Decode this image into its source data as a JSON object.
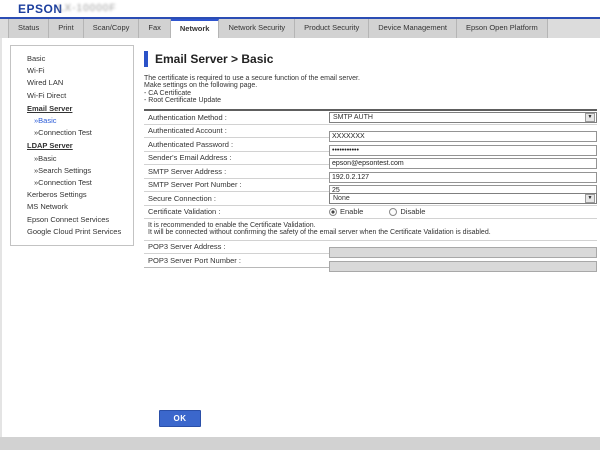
{
  "header": {
    "brand": "EPSON",
    "model": "LX-10000F"
  },
  "tabs": [
    {
      "label": "Status"
    },
    {
      "label": "Print"
    },
    {
      "label": "Scan/Copy"
    },
    {
      "label": "Fax"
    },
    {
      "label": "Network",
      "active": true
    },
    {
      "label": "Network Security"
    },
    {
      "label": "Product Security"
    },
    {
      "label": "Device Management"
    },
    {
      "label": "Epson Open Platform"
    }
  ],
  "sidebar": {
    "items": [
      {
        "label": "Basic"
      },
      {
        "label": "Wi-Fi"
      },
      {
        "label": "Wired LAN"
      },
      {
        "label": "Wi-Fi Direct"
      },
      {
        "label": "Email Server",
        "type": "section"
      },
      {
        "label": "»Basic",
        "type": "sub",
        "active": true
      },
      {
        "label": "»Connection Test",
        "type": "sub"
      },
      {
        "label": "LDAP Server",
        "type": "section"
      },
      {
        "label": "»Basic",
        "type": "sub"
      },
      {
        "label": "»Search Settings",
        "type": "sub"
      },
      {
        "label": "»Connection Test",
        "type": "sub"
      },
      {
        "label": "Kerberos Settings"
      },
      {
        "label": "MS Network"
      },
      {
        "label": "Epson Connect Services"
      },
      {
        "label": "Google Cloud Print Services"
      }
    ]
  },
  "main": {
    "title": "Email Server > Basic",
    "intro_lines": [
      "The certificate is required to use a secure function of the email server.",
      "Make settings on the following page.",
      "- CA Certificate",
      "- Root Certificate Update"
    ],
    "form": {
      "rows": [
        {
          "label": "Authentication Method :",
          "value": "SMTP AUTH"
        },
        {
          "label": "Authenticated Account :",
          "value": "XXXXXXX"
        },
        {
          "label": "Authenticated Password :",
          "value": "•••••••••••"
        },
        {
          "label": "Sender's Email Address :",
          "value": "epson@epsontest.com"
        },
        {
          "label": "SMTP Server Address :",
          "value": "192.0.2.127"
        },
        {
          "label": "SMTP Server Port Number :",
          "value": "25"
        },
        {
          "label": "Secure Connection :",
          "value": "None"
        },
        {
          "label": "Certificate Validation :"
        },
        {
          "label": "POP3 Server Address :",
          "value": ""
        },
        {
          "label": "POP3 Server Port Number :",
          "value": ""
        }
      ],
      "certificate_validation": {
        "options": [
          {
            "label": "Enable",
            "selected": true
          },
          {
            "label": "Disable",
            "selected": false
          }
        ]
      }
    },
    "note_lines": [
      "It is recommended to enable the Certificate Validation.",
      "It will be connected without confirming the safety of the email server when the Certificate Validation is disabled."
    ],
    "ok_label": "OK"
  },
  "icons": {
    "dropdown_arrow": "▼"
  },
  "colors": {
    "brand_blue": "#1c3f9e",
    "accent_blue": "#2b52c8",
    "tab_gray": "#d2d2d2",
    "footer_gray": "#d2d2d2"
  }
}
